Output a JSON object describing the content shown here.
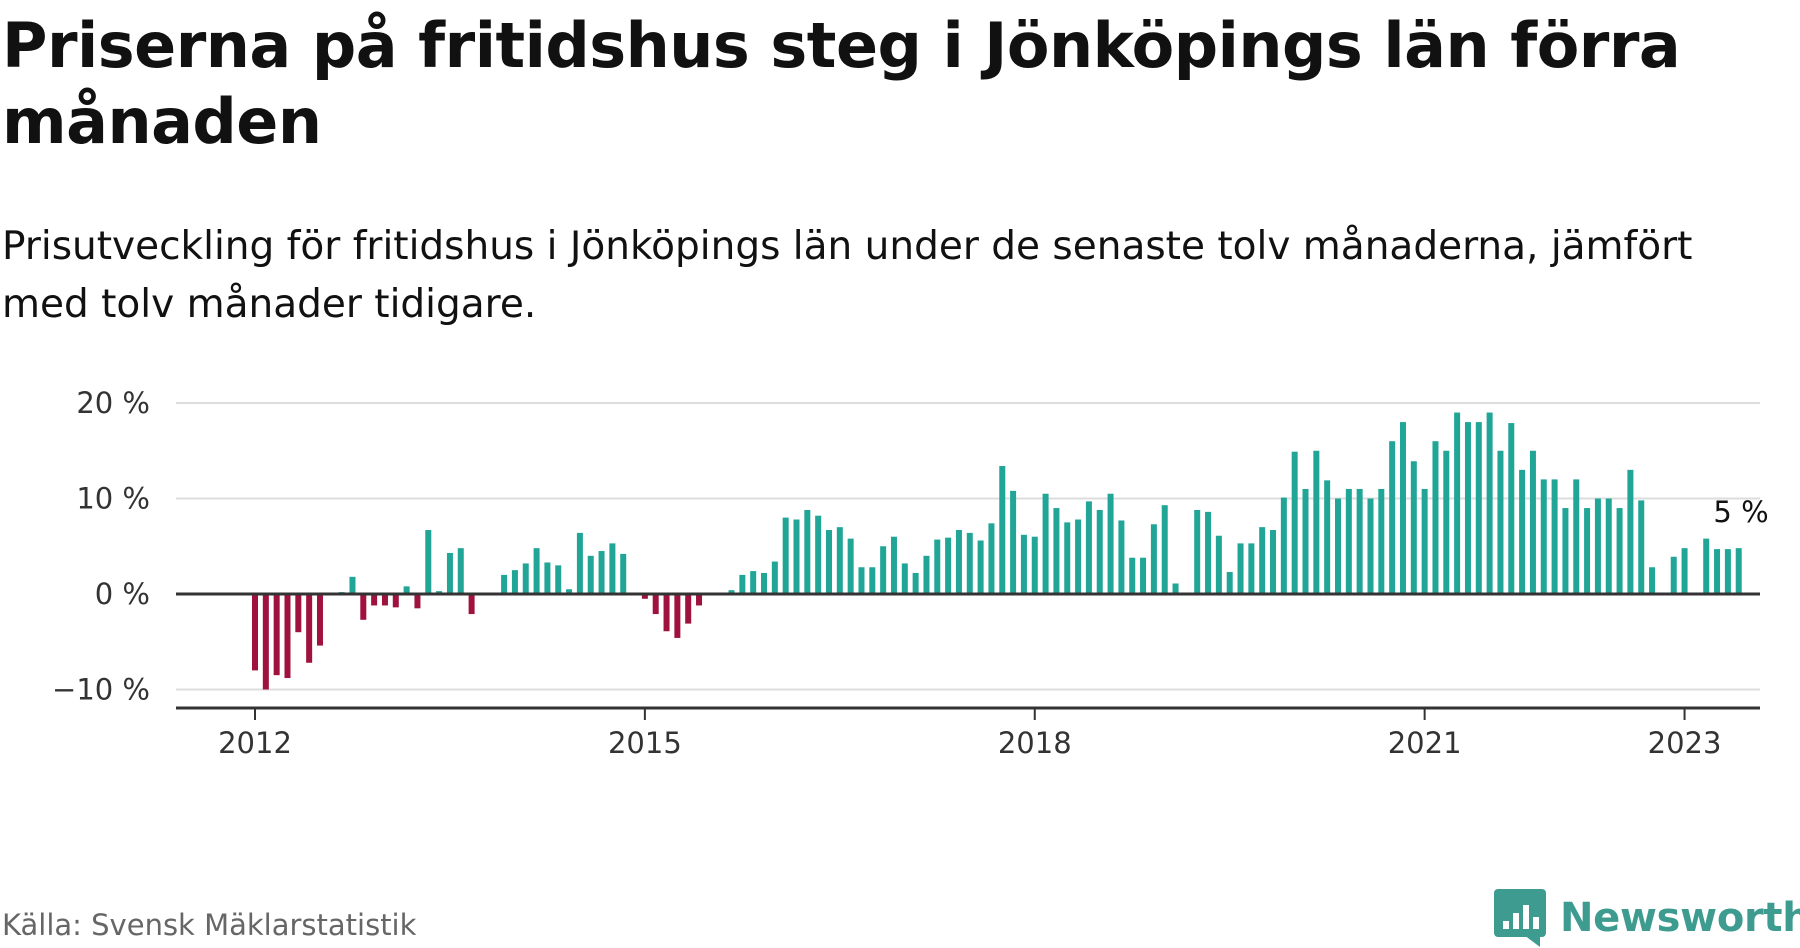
{
  "chart_data": {
    "type": "bar",
    "title": "Priserna på fritidshus steg i Jönköpings län förra månaden",
    "subtitle": "Prisutveckling för fritidshus i Jönköpings län under de senaste tolv månaderna, jämfört med tolv månader tidigare.",
    "xlabel": "",
    "ylabel": "",
    "ylim": [
      -12,
      20
    ],
    "y_ticks": [
      {
        "value": 20,
        "label": "20 %"
      },
      {
        "value": 10,
        "label": "10 %"
      },
      {
        "value": 0,
        "label": "0 %"
      },
      {
        "value": -10,
        "label": "−10 %"
      }
    ],
    "x_ticks": [
      {
        "value": 2012,
        "label": "2012"
      },
      {
        "value": 2015,
        "label": "2015"
      },
      {
        "value": 2018,
        "label": "2018"
      },
      {
        "value": 2021,
        "label": "2021"
      },
      {
        "value": 2023,
        "label": "2023"
      }
    ],
    "x_start": "2012-01",
    "grid": true,
    "positive_color": "#20a597",
    "negative_color": "#a0123e",
    "values": [
      -8,
      -10,
      -8.5,
      -8.8,
      -4,
      -7.2,
      -5.4,
      null,
      0.2,
      1.8,
      -2.7,
      -1.2,
      -1.2,
      -1.4,
      0.8,
      -1.5,
      6.7,
      0.3,
      4.3,
      4.8,
      -2.1,
      null,
      null,
      2,
      2.5,
      3.2,
      4.8,
      3.3,
      3,
      0.5,
      6.4,
      4,
      4.5,
      5.3,
      4.2,
      null,
      -0.5,
      -2.1,
      -3.9,
      -4.6,
      -3.1,
      -1.2,
      null,
      null,
      0.4,
      2,
      2.4,
      2.2,
      3.4,
      8,
      7.8,
      8.8,
      8.2,
      6.7,
      7,
      5.8,
      2.8,
      2.8,
      5,
      6,
      3.2,
      2.2,
      4,
      5.7,
      5.9,
      6.7,
      6.4,
      5.6,
      7.4,
      13.4,
      10.8,
      6.2,
      6,
      10.5,
      9,
      7.5,
      7.8,
      9.7,
      8.8,
      10.5,
      7.7,
      3.8,
      3.8,
      7.3,
      9.3,
      1.1,
      null,
      8.8,
      8.6,
      6.1,
      2.3,
      5.3,
      5.3,
      7,
      6.7,
      10.1,
      14.9,
      11,
      15,
      11.9,
      10,
      11,
      11,
      10,
      11,
      16,
      18,
      13.9,
      11,
      16,
      15,
      19,
      18,
      18,
      19,
      15,
      17.9,
      13,
      15,
      12,
      12,
      9,
      12,
      9,
      10,
      10,
      9,
      13,
      9.8,
      2.8,
      null,
      3.9,
      4.8,
      null,
      5.8,
      4.7,
      4.7,
      4.8
    ],
    "annotation": {
      "index": 135,
      "label": "5 %"
    }
  },
  "source": "Källa: Svensk Mäklarstatistik",
  "brand": {
    "name": "Newsworthy",
    "color": "#3d9c8f"
  }
}
